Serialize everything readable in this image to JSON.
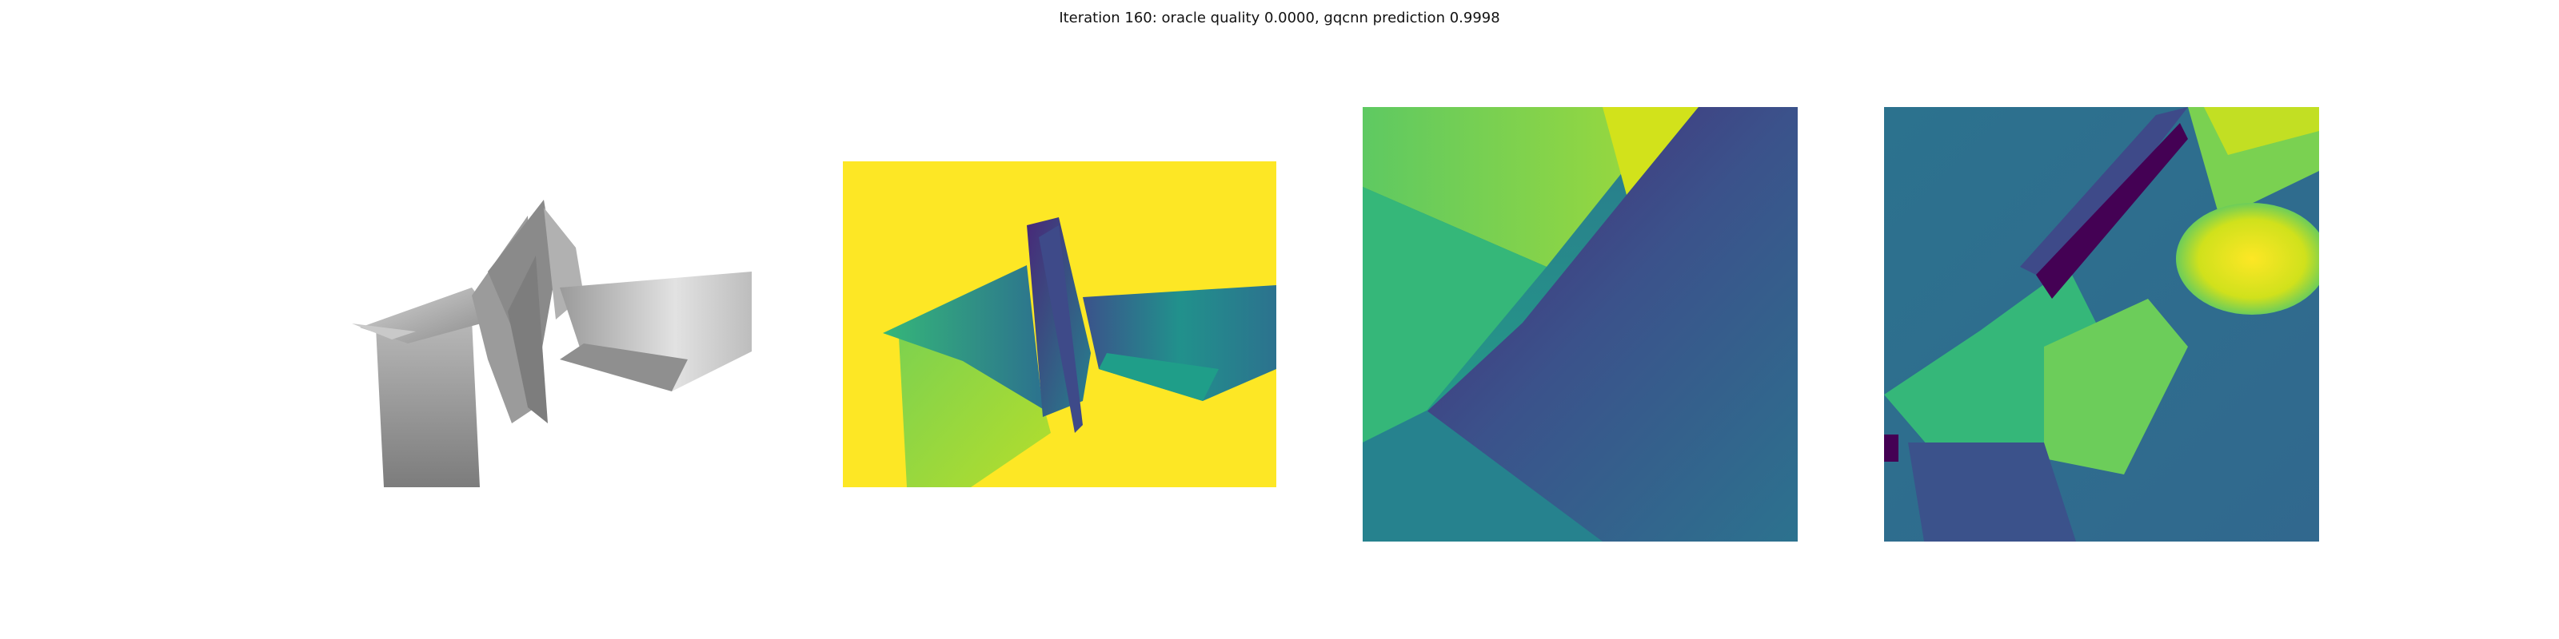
{
  "figure": {
    "title": "Iteration 160: oracle quality 0.0000, gqcnn prediction 0.9998"
  },
  "colors": {
    "background": "#ffffff",
    "viridis_dark": "#440154",
    "viridis_blue": "#31688e",
    "viridis_teal": "#21918c",
    "viridis_green": "#5ec962",
    "viridis_yellow": "#fde725",
    "gray_light": "#cfcfcf",
    "gray_dark": "#7a7a7a"
  },
  "panels": [
    {
      "id": "render",
      "description_icon": "grayscale-mesh-render"
    },
    {
      "id": "depth",
      "description_icon": "viridis-depth-image"
    },
    {
      "id": "crop-a",
      "description_icon": "viridis-depth-crop"
    },
    {
      "id": "crop-b",
      "description_icon": "viridis-feature-crop"
    }
  ]
}
